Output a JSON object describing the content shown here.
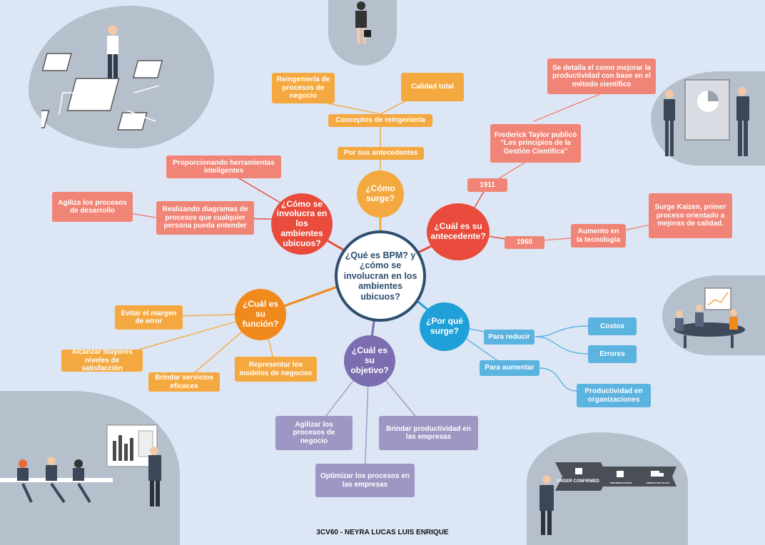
{
  "center": {
    "label": "¿Qué es BPM? y ¿cómo se involucran en los ambientes ubicuos?"
  },
  "footer": "3CV60 - NEYRA LUCAS LUIS ENRIQUE",
  "colors": {
    "yellow": "#f4a940",
    "orange": "#f08a1c",
    "red": "#e94c3c",
    "salmon": "#f08476",
    "blue": "#1fa0d8",
    "lightblue": "#5bb3e0",
    "purple": "#7b6db0",
    "lavender": "#9e97c4",
    "center_border": "#2d4f6f"
  },
  "nodes": {
    "como_surge": {
      "label": "¿Cómo surge?",
      "children": {
        "por_antecedentes": "Por sus antecedentes",
        "conceptos": "Conceptos de reingeniería",
        "reingenieria": "Reingeniería de procesos de negocio",
        "calidad_total": "Calidad total"
      }
    },
    "antecedente": {
      "label": "¿Cuál es su antecedente?",
      "y1911": "1911",
      "taylor": "Frederick Taylor publicó \"Los principios de la Gestión Científica\"",
      "detalla": "Se detalla el como mejorar la productividad con base en el método científico",
      "y1960": "1960",
      "aumento": "Aumento en la tecnología",
      "kaizen": "Surge Kaizen, primer proceso orientado a mejoras de calidad."
    },
    "involucra": {
      "label": "¿Cómo se involucra en los ambientes ubicuos?",
      "herramientas": "Proporcionando herramientas inteligentes",
      "diagramas": "Realizando diagramas de procesos que cualquier persona pueda entender",
      "agiliza": "Agiliza los procesos de desarrollo"
    },
    "funcion": {
      "label": "¿Cuál es su función?",
      "evitar": "Evitar el margen de error",
      "alcanzar": "Alcanzar mayores niveles de satisfacción",
      "brindar": "Brindar servicios eficaces",
      "representar": "Representar los modelos de negocios"
    },
    "objetivo": {
      "label": "¿Cuál es su objetivo?",
      "agilizar": "Agilizar los procesos de negocio",
      "brindar": "Brindar productividad en las empresas",
      "optimizar": "Optimizar los procesos en las empresas"
    },
    "por_que": {
      "label": "¿Por qué surge?",
      "reducir": "Para reducir",
      "costos": "Costos",
      "errores": "Errores",
      "aumentar": "Para aumentar",
      "productividad": "Productividad en organizaciones"
    }
  },
  "decor": {
    "order": "ORDER CONFIRMED",
    "step2": "ITEM BEING PACKED",
    "step3": "ORDER IS ON ITS WAY"
  },
  "icons": [
    "chip-icon",
    "presentation-icon",
    "meeting-icon",
    "delivery-truck-icon",
    "bar-chart-icon"
  ]
}
